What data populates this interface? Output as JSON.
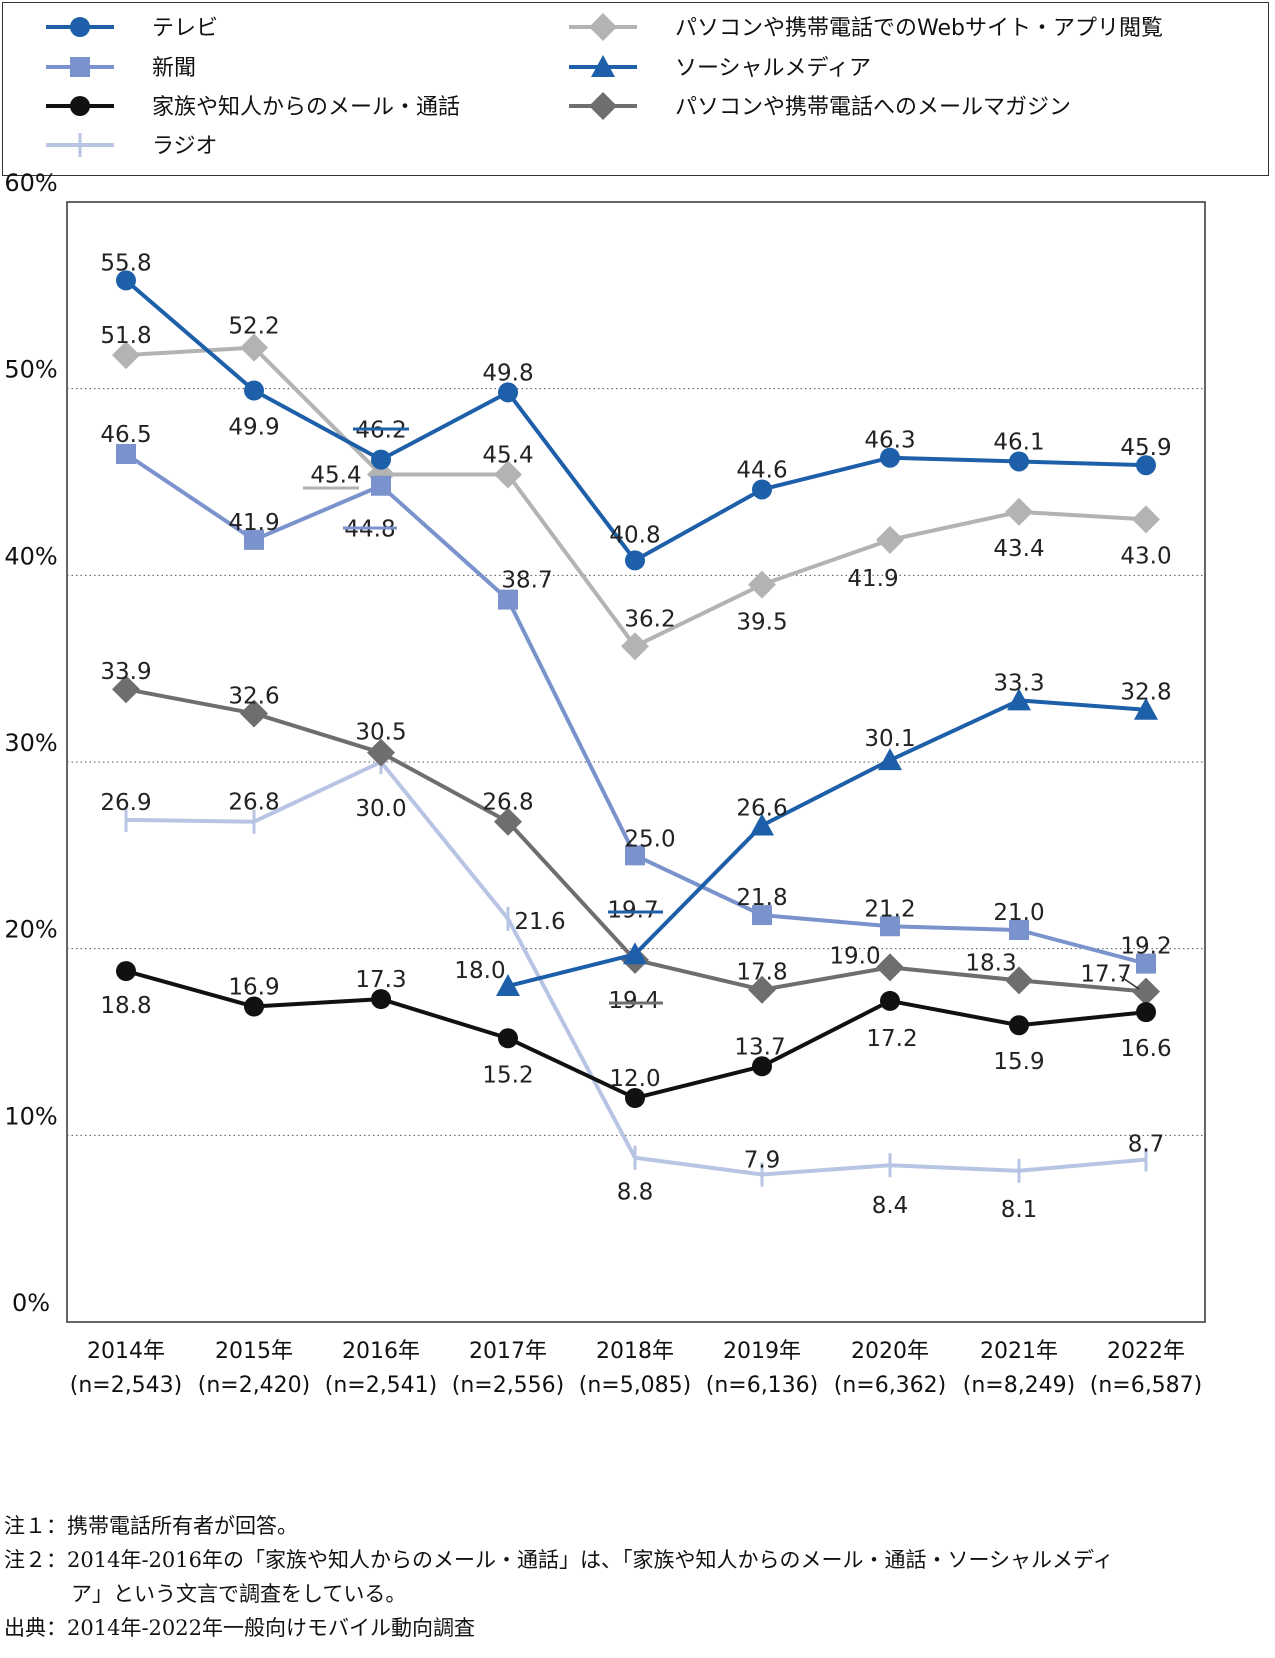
{
  "chart_data": {
    "type": "line",
    "x": [
      "2014年",
      "2015年",
      "2016年",
      "2017年",
      "2018年",
      "2019年",
      "2020年",
      "2021年",
      "2022年"
    ],
    "sample_sizes": [
      "(n=2,543)",
      "(n=2,420)",
      "(n=2,541)",
      "(n=2,556)",
      "(n=5,085)",
      "(n=6,136)",
      "(n=6,362)",
      "(n=8,249)",
      "(n=6,587)"
    ],
    "yticks": [
      "0%",
      "10%",
      "20%",
      "30%",
      "40%",
      "50%",
      "60%"
    ],
    "ylim": [
      0,
      60
    ],
    "grid": "dotted horizontal at 10% intervals",
    "legend_position": "top",
    "series": [
      {
        "name": "テレビ",
        "key": "tv",
        "color": "#1d5fa8",
        "marker": "circle",
        "values": [
          55.8,
          49.9,
          46.2,
          49.8,
          40.8,
          44.6,
          46.3,
          46.1,
          45.9
        ],
        "labels": [
          "55.8",
          "49.9",
          "46.2",
          "49.8",
          "40.8",
          "44.6",
          "46.3",
          "46.1",
          "45.9"
        ]
      },
      {
        "name": "新聞",
        "key": "newspaper",
        "color": "#7b93cc",
        "marker": "square",
        "values": [
          46.5,
          41.9,
          44.8,
          38.7,
          25.0,
          21.8,
          21.2,
          21.0,
          19.2
        ],
        "labels": [
          "46.5",
          "41.9",
          "44.8",
          "38.7",
          "25.0",
          "21.8",
          "21.2",
          "21.0",
          "19.2"
        ]
      },
      {
        "name": "家族や知人からのメール・通話",
        "key": "family",
        "color": "#111111",
        "marker": "circle",
        "values": [
          18.8,
          16.9,
          17.3,
          15.2,
          12.0,
          13.7,
          17.2,
          15.9,
          16.6
        ],
        "labels": [
          "18.8",
          "16.9",
          "17.3",
          "15.2",
          "12.0",
          "13.7",
          "17.2",
          "15.9",
          "16.6"
        ]
      },
      {
        "name": "ラジオ",
        "key": "radio",
        "color": "#b8c4e4",
        "marker": "tick",
        "values": [
          26.9,
          26.8,
          30.0,
          21.6,
          8.8,
          7.9,
          8.4,
          8.1,
          8.7
        ],
        "labels": [
          "26.9",
          "26.8",
          "30.0",
          "21.6",
          "8.8",
          "7.9",
          "8.4",
          "8.1",
          "8.7"
        ]
      },
      {
        "name": "パソコンや携帯電話でのWebサイト・アプリ閲覧",
        "key": "web",
        "color": "#b3b3b3",
        "marker": "diamond",
        "values": [
          51.8,
          52.2,
          45.4,
          45.4,
          36.2,
          39.5,
          41.9,
          43.4,
          43.0
        ],
        "labels": [
          "51.8",
          "52.2",
          "45.4",
          "45.4",
          "36.2",
          "39.5",
          "41.9",
          "43.4",
          "43.0"
        ]
      },
      {
        "name": "ソーシャルメディア",
        "key": "social",
        "color": "#1d5fa8",
        "marker": "triangle",
        "values": [
          null,
          null,
          null,
          18.0,
          19.7,
          26.6,
          30.1,
          33.3,
          32.8
        ],
        "labels": [
          null,
          null,
          null,
          "18.0",
          "19.7",
          "26.6",
          "30.1",
          "33.3",
          "32.8"
        ]
      },
      {
        "name": "パソコンや携帯電話へのメールマガジン",
        "key": "mailmag",
        "color": "#6e6e6e",
        "marker": "diamond",
        "values": [
          33.9,
          32.6,
          30.5,
          26.8,
          19.4,
          17.8,
          19.0,
          18.3,
          17.7
        ],
        "labels": [
          "33.9",
          "32.6",
          "30.5",
          "26.8",
          "19.4",
          "17.8",
          "19.0",
          "18.3",
          "17.7"
        ]
      }
    ]
  },
  "notes": {
    "note1": "注１：携帯電話所有者が回答。",
    "note2a": "注２：2014年-2016年の「家族や知人からのメール・通話」は、「家族や知人からのメール・通話・ソーシャルメディ",
    "note2b": "ア」という文言で調査をしている。",
    "source": "出典：2014年-2022年一般向けモバイル動向調査"
  }
}
